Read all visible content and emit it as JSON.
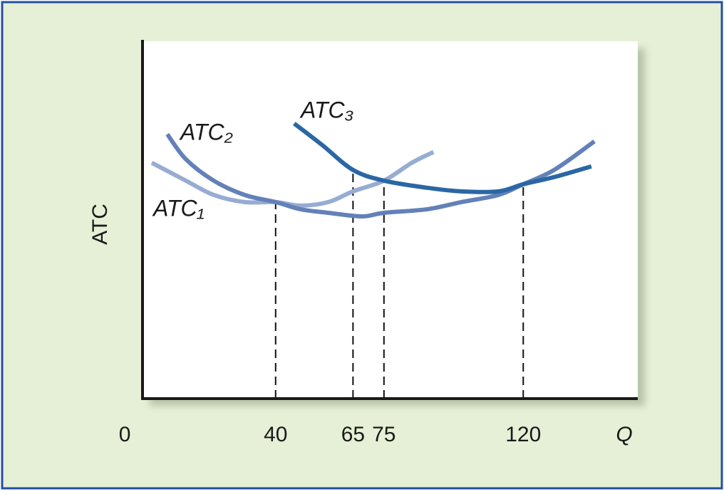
{
  "chart_data": {
    "type": "line",
    "xlabel": "Q",
    "ylabel": "ATC",
    "xlim": [
      -3,
      157
    ],
    "ylim": [
      0,
      100
    ],
    "xticks": [
      0,
      40,
      65,
      75,
      120
    ],
    "series": [
      {
        "name": "ATC₁",
        "color": "#97acd3",
        "x": [
          0,
          11,
          20,
          30,
          40,
          48,
          57,
          65,
          75,
          84,
          91
        ],
        "values": [
          66,
          61,
          57,
          55,
          55,
          54,
          55,
          58,
          61,
          66,
          69
        ]
      },
      {
        "name": "ATC₂",
        "color": "#6381b8",
        "x": [
          5,
          11,
          20,
          30,
          40,
          48,
          57,
          68,
          75,
          89,
          100,
          112,
          120,
          130,
          143
        ],
        "values": [
          74,
          67,
          61,
          57,
          55,
          53,
          52,
          51,
          52,
          53,
          55,
          57,
          60,
          64,
          72
        ]
      },
      {
        "name": "ATC₃",
        "color": "#2a67a4",
        "x": [
          46,
          55,
          65,
          75,
          89,
          100,
          112,
          120,
          130,
          142
        ],
        "values": [
          77,
          71,
          64,
          61,
          59,
          58,
          58,
          60,
          62,
          65
        ]
      }
    ]
  }
}
